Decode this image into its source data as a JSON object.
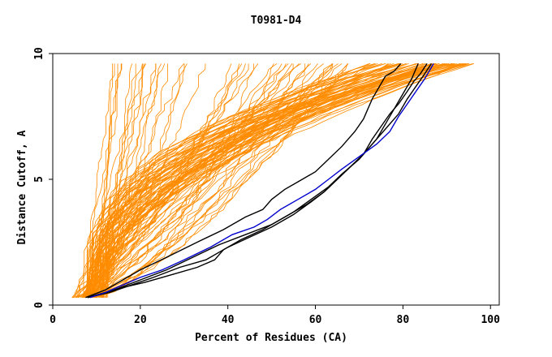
{
  "chart_data": {
    "type": "line",
    "title": "T0981-D4",
    "xlabel": "Percent of Residues (CA)",
    "ylabel": "Distance Cutoff, A",
    "xlim": [
      0,
      102
    ],
    "ylim": [
      0,
      10
    ],
    "x_ticks": [
      "0",
      "20",
      "40",
      "60",
      "80",
      "100"
    ],
    "y_ticks": [
      "0",
      "5",
      "10"
    ],
    "grid": false,
    "colors": {
      "background_traces": "#ff8c00",
      "highlight_black": "#000000",
      "highlight_blue": "#0000cc"
    },
    "series": [
      {
        "group": "highlight",
        "color": "#000000",
        "x": [
          7.5,
          12,
          16,
          20,
          26,
          33,
          39,
          44,
          48,
          50,
          53,
          56,
          60,
          63,
          66,
          69,
          71,
          72,
          73,
          74,
          75,
          76,
          78,
          79.5
        ],
        "y": [
          0.3,
          0.6,
          1.0,
          1.4,
          1.9,
          2.5,
          3.0,
          3.5,
          3.8,
          4.2,
          4.6,
          4.9,
          5.3,
          5.8,
          6.3,
          6.9,
          7.4,
          7.8,
          8.2,
          8.5,
          8.8,
          9.1,
          9.3,
          9.6
        ]
      },
      {
        "group": "highlight",
        "color": "#000000",
        "x": [
          8,
          13,
          18,
          23,
          29,
          35,
          40,
          45,
          50,
          55,
          59,
          62,
          65,
          68,
          71,
          73,
          75,
          77,
          79,
          81,
          82.5,
          84,
          85.5
        ],
        "y": [
          0.3,
          0.5,
          0.8,
          1.1,
          1.5,
          1.8,
          2.3,
          2.7,
          3.1,
          3.6,
          4.1,
          4.5,
          5.0,
          5.5,
          6.0,
          6.6,
          7.1,
          7.6,
          8.0,
          8.5,
          8.9,
          9.2,
          9.6
        ]
      },
      {
        "group": "highlight",
        "color": "#000000",
        "x": [
          8,
          12,
          16,
          21,
          27,
          33,
          37,
          39,
          43,
          48,
          53,
          58,
          62,
          65,
          68,
          71,
          74,
          76,
          78,
          80,
          82,
          83.5
        ],
        "y": [
          0.3,
          0.5,
          0.7,
          0.9,
          1.2,
          1.5,
          1.8,
          2.2,
          2.6,
          3.0,
          3.5,
          4.0,
          4.5,
          5.0,
          5.5,
          6.0,
          6.6,
          7.2,
          7.8,
          8.4,
          9.0,
          9.6
        ]
      },
      {
        "group": "highlight",
        "color": "#000000",
        "x": [
          8,
          14,
          20,
          26,
          32,
          38,
          44,
          50,
          55,
          59,
          63,
          66,
          70,
          73,
          76,
          79,
          81,
          83,
          85,
          86.5
        ],
        "y": [
          0.3,
          0.6,
          1.0,
          1.4,
          1.9,
          2.4,
          2.8,
          3.2,
          3.7,
          4.2,
          4.7,
          5.2,
          5.8,
          6.4,
          7.0,
          7.6,
          8.2,
          8.7,
          9.2,
          9.6
        ]
      },
      {
        "group": "highlight",
        "color": "#0000cc",
        "x": [
          8.5,
          12,
          16,
          20,
          25,
          30,
          36,
          41,
          46,
          49,
          52,
          56,
          60,
          63,
          66,
          70,
          74,
          77,
          79,
          81,
          83,
          85,
          87
        ],
        "y": [
          0.3,
          0.5,
          0.8,
          1.1,
          1.4,
          1.8,
          2.3,
          2.8,
          3.1,
          3.4,
          3.8,
          4.2,
          4.6,
          5.0,
          5.4,
          5.9,
          6.4,
          6.9,
          7.5,
          8.0,
          8.5,
          9.0,
          9.6
        ]
      }
    ]
  }
}
